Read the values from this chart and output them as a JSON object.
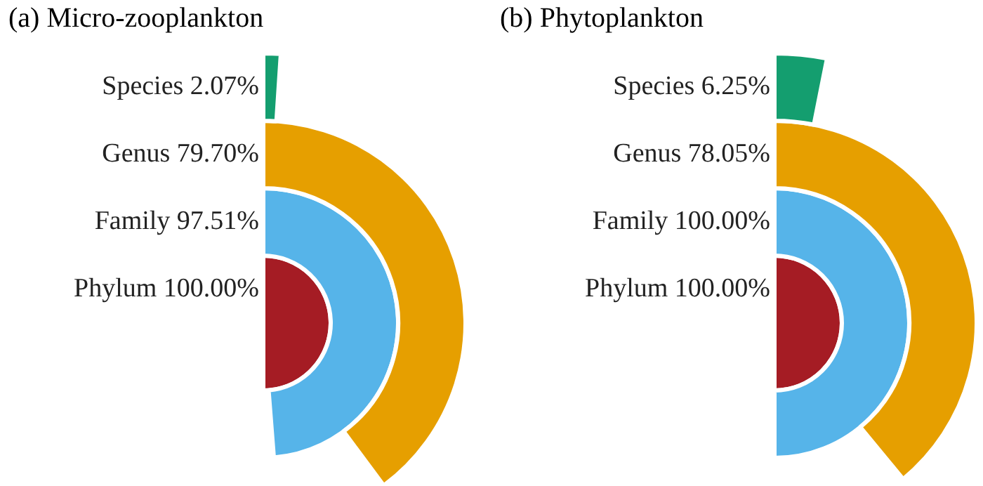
{
  "chart_data": [
    {
      "type": "other",
      "title": "(a) Micro-zooplankton",
      "categories": [
        "Species",
        "Genus",
        "Family",
        "Phylum"
      ],
      "values": [
        2.07,
        79.7,
        97.51,
        100.0
      ],
      "value_labels": [
        "2.07%",
        "79.70%",
        "97.51%",
        "100.00%"
      ],
      "colors": [
        "#149e6f",
        "#e69f00",
        "#56b4e9",
        "#a51c24"
      ]
    },
    {
      "type": "other",
      "title": "(b) Phytoplankton",
      "categories": [
        "Species",
        "Genus",
        "Family",
        "Phylum"
      ],
      "values": [
        6.25,
        78.05,
        100.0,
        100.0
      ],
      "value_labels": [
        "6.25%",
        "78.05%",
        "100.00%",
        "100.00%"
      ],
      "colors": [
        "#149e6f",
        "#e69f00",
        "#56b4e9",
        "#a51c24"
      ]
    }
  ]
}
